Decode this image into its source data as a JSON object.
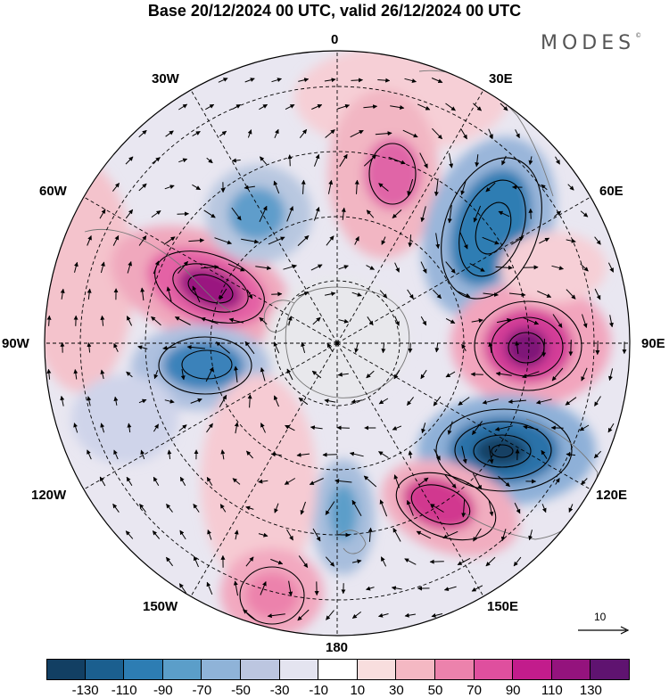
{
  "title": "Base 20/12/2024 00 UTC, valid 26/12/2024 00 UTC",
  "brand": "MODES",
  "brand_mark": "©",
  "longitude_labels": {
    "lon_0": "0",
    "lon_30e": "30E",
    "lon_60e": "60E",
    "lon_90e": "90E",
    "lon_120e": "120E",
    "lon_150e": "150E",
    "lon_180": "180",
    "lon_150w": "150W",
    "lon_120w": "120W",
    "lon_90w": "90W",
    "lon_60w": "60W",
    "lon_30w": "30W"
  },
  "reference_vector_label": "10",
  "colorbar": {
    "colors": [
      "#123f63",
      "#1b5f8f",
      "#2d7db3",
      "#5b9ec9",
      "#8fb3d8",
      "#bcc6e0",
      "#e4e4f0",
      "#ffffff",
      "#f8dede",
      "#f4b8c3",
      "#ec82ac",
      "#df4f9e",
      "#c21c8c",
      "#94137d",
      "#5f1370"
    ],
    "tick_labels": [
      "-130",
      "-110",
      "-90",
      "-70",
      "-50",
      "-30",
      "-10",
      "10",
      "30",
      "50",
      "70",
      "90",
      "110",
      "130"
    ]
  },
  "map": {
    "projection": "south polar stereographic",
    "anomaly_centers": [
      {
        "name": "positive-anomaly-w-pacific-s",
        "lon": 285,
        "value": 120
      },
      {
        "name": "negative-anomaly-w",
        "lon": 270,
        "value": -90
      },
      {
        "name": "negative-anomaly-wnw",
        "lon": 315,
        "value": -70
      },
      {
        "name": "positive-anomaly-n",
        "lon": 15,
        "value": 75
      },
      {
        "name": "negative-anomaly-ne",
        "lon": 50,
        "value": -110
      },
      {
        "name": "positive-anomaly-e",
        "lon": 90,
        "value": 110
      },
      {
        "name": "negative-anomaly-se",
        "lon": 120,
        "value": -130
      },
      {
        "name": "positive-anomaly-sse",
        "lon": 145,
        "value": 90
      },
      {
        "name": "negative-anomaly-s",
        "lon": 185,
        "value": -60
      },
      {
        "name": "positive-anomaly-ssw",
        "lon": 210,
        "value": 60
      }
    ]
  }
}
